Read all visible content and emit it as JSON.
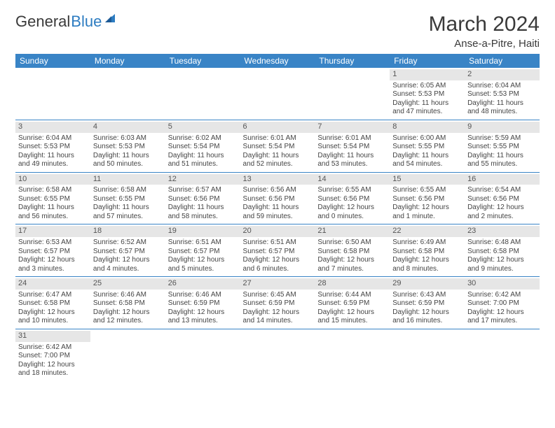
{
  "logo": {
    "text1": "General",
    "text2": "Blue"
  },
  "title": "March 2024",
  "location": "Anse-a-Pitre, Haiti",
  "colors": {
    "header_bg": "#3984c6",
    "header_text": "#ffffff",
    "daynum_bg": "#e6e6e6",
    "border": "#3984c6",
    "logo_blue": "#2d7cc1"
  },
  "weekdays": [
    "Sunday",
    "Monday",
    "Tuesday",
    "Wednesday",
    "Thursday",
    "Friday",
    "Saturday"
  ],
  "weeks": [
    [
      null,
      null,
      null,
      null,
      null,
      {
        "n": "1",
        "sr": "Sunrise: 6:05 AM",
        "ss": "Sunset: 5:53 PM",
        "d1": "Daylight: 11 hours",
        "d2": "and 47 minutes."
      },
      {
        "n": "2",
        "sr": "Sunrise: 6:04 AM",
        "ss": "Sunset: 5:53 PM",
        "d1": "Daylight: 11 hours",
        "d2": "and 48 minutes."
      }
    ],
    [
      {
        "n": "3",
        "sr": "Sunrise: 6:04 AM",
        "ss": "Sunset: 5:53 PM",
        "d1": "Daylight: 11 hours",
        "d2": "and 49 minutes."
      },
      {
        "n": "4",
        "sr": "Sunrise: 6:03 AM",
        "ss": "Sunset: 5:53 PM",
        "d1": "Daylight: 11 hours",
        "d2": "and 50 minutes."
      },
      {
        "n": "5",
        "sr": "Sunrise: 6:02 AM",
        "ss": "Sunset: 5:54 PM",
        "d1": "Daylight: 11 hours",
        "d2": "and 51 minutes."
      },
      {
        "n": "6",
        "sr": "Sunrise: 6:01 AM",
        "ss": "Sunset: 5:54 PM",
        "d1": "Daylight: 11 hours",
        "d2": "and 52 minutes."
      },
      {
        "n": "7",
        "sr": "Sunrise: 6:01 AM",
        "ss": "Sunset: 5:54 PM",
        "d1": "Daylight: 11 hours",
        "d2": "and 53 minutes."
      },
      {
        "n": "8",
        "sr": "Sunrise: 6:00 AM",
        "ss": "Sunset: 5:55 PM",
        "d1": "Daylight: 11 hours",
        "d2": "and 54 minutes."
      },
      {
        "n": "9",
        "sr": "Sunrise: 5:59 AM",
        "ss": "Sunset: 5:55 PM",
        "d1": "Daylight: 11 hours",
        "d2": "and 55 minutes."
      }
    ],
    [
      {
        "n": "10",
        "sr": "Sunrise: 6:58 AM",
        "ss": "Sunset: 6:55 PM",
        "d1": "Daylight: 11 hours",
        "d2": "and 56 minutes."
      },
      {
        "n": "11",
        "sr": "Sunrise: 6:58 AM",
        "ss": "Sunset: 6:55 PM",
        "d1": "Daylight: 11 hours",
        "d2": "and 57 minutes."
      },
      {
        "n": "12",
        "sr": "Sunrise: 6:57 AM",
        "ss": "Sunset: 6:56 PM",
        "d1": "Daylight: 11 hours",
        "d2": "and 58 minutes."
      },
      {
        "n": "13",
        "sr": "Sunrise: 6:56 AM",
        "ss": "Sunset: 6:56 PM",
        "d1": "Daylight: 11 hours",
        "d2": "and 59 minutes."
      },
      {
        "n": "14",
        "sr": "Sunrise: 6:55 AM",
        "ss": "Sunset: 6:56 PM",
        "d1": "Daylight: 12 hours",
        "d2": "and 0 minutes."
      },
      {
        "n": "15",
        "sr": "Sunrise: 6:55 AM",
        "ss": "Sunset: 6:56 PM",
        "d1": "Daylight: 12 hours",
        "d2": "and 1 minute."
      },
      {
        "n": "16",
        "sr": "Sunrise: 6:54 AM",
        "ss": "Sunset: 6:56 PM",
        "d1": "Daylight: 12 hours",
        "d2": "and 2 minutes."
      }
    ],
    [
      {
        "n": "17",
        "sr": "Sunrise: 6:53 AM",
        "ss": "Sunset: 6:57 PM",
        "d1": "Daylight: 12 hours",
        "d2": "and 3 minutes."
      },
      {
        "n": "18",
        "sr": "Sunrise: 6:52 AM",
        "ss": "Sunset: 6:57 PM",
        "d1": "Daylight: 12 hours",
        "d2": "and 4 minutes."
      },
      {
        "n": "19",
        "sr": "Sunrise: 6:51 AM",
        "ss": "Sunset: 6:57 PM",
        "d1": "Daylight: 12 hours",
        "d2": "and 5 minutes."
      },
      {
        "n": "20",
        "sr": "Sunrise: 6:51 AM",
        "ss": "Sunset: 6:57 PM",
        "d1": "Daylight: 12 hours",
        "d2": "and 6 minutes."
      },
      {
        "n": "21",
        "sr": "Sunrise: 6:50 AM",
        "ss": "Sunset: 6:58 PM",
        "d1": "Daylight: 12 hours",
        "d2": "and 7 minutes."
      },
      {
        "n": "22",
        "sr": "Sunrise: 6:49 AM",
        "ss": "Sunset: 6:58 PM",
        "d1": "Daylight: 12 hours",
        "d2": "and 8 minutes."
      },
      {
        "n": "23",
        "sr": "Sunrise: 6:48 AM",
        "ss": "Sunset: 6:58 PM",
        "d1": "Daylight: 12 hours",
        "d2": "and 9 minutes."
      }
    ],
    [
      {
        "n": "24",
        "sr": "Sunrise: 6:47 AM",
        "ss": "Sunset: 6:58 PM",
        "d1": "Daylight: 12 hours",
        "d2": "and 10 minutes."
      },
      {
        "n": "25",
        "sr": "Sunrise: 6:46 AM",
        "ss": "Sunset: 6:58 PM",
        "d1": "Daylight: 12 hours",
        "d2": "and 12 minutes."
      },
      {
        "n": "26",
        "sr": "Sunrise: 6:46 AM",
        "ss": "Sunset: 6:59 PM",
        "d1": "Daylight: 12 hours",
        "d2": "and 13 minutes."
      },
      {
        "n": "27",
        "sr": "Sunrise: 6:45 AM",
        "ss": "Sunset: 6:59 PM",
        "d1": "Daylight: 12 hours",
        "d2": "and 14 minutes."
      },
      {
        "n": "28",
        "sr": "Sunrise: 6:44 AM",
        "ss": "Sunset: 6:59 PM",
        "d1": "Daylight: 12 hours",
        "d2": "and 15 minutes."
      },
      {
        "n": "29",
        "sr": "Sunrise: 6:43 AM",
        "ss": "Sunset: 6:59 PM",
        "d1": "Daylight: 12 hours",
        "d2": "and 16 minutes."
      },
      {
        "n": "30",
        "sr": "Sunrise: 6:42 AM",
        "ss": "Sunset: 7:00 PM",
        "d1": "Daylight: 12 hours",
        "d2": "and 17 minutes."
      }
    ],
    [
      {
        "n": "31",
        "sr": "Sunrise: 6:42 AM",
        "ss": "Sunset: 7:00 PM",
        "d1": "Daylight: 12 hours",
        "d2": "and 18 minutes."
      },
      null,
      null,
      null,
      null,
      null,
      null
    ]
  ]
}
